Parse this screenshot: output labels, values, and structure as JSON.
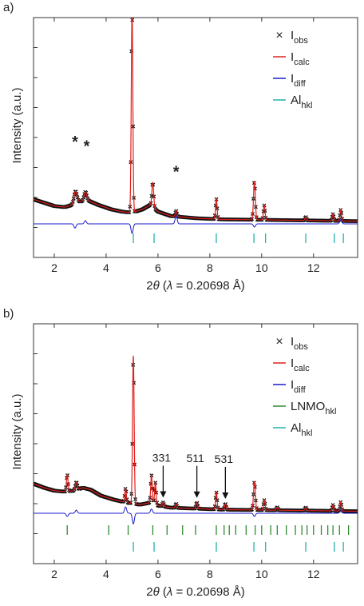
{
  "chart_data": [
    {
      "panel_label": "a)",
      "type": "line",
      "xlabel_prefix": "2",
      "xlabel_theta": "θ",
      "xlabel_mid": " (",
      "xlabel_lambda": "λ",
      "xlabel_suffix": " = 0.20698 Å)",
      "ylabel": "Intensity (a.u.)",
      "xlim": [
        1.2,
        13.7
      ],
      "xticks": [
        "2",
        "4",
        "6",
        "8",
        "10",
        "12"
      ],
      "xtick_values": [
        2,
        4,
        6,
        8,
        10,
        12
      ],
      "ylim": [
        0,
        1
      ],
      "legend": [
        {
          "symbol": "×",
          "main": "I",
          "sub": "obs",
          "color": "#222222",
          "kind": "marker"
        },
        {
          "symbol": "—",
          "main": "I",
          "sub": "calc",
          "color": "#e0201c",
          "kind": "line"
        },
        {
          "symbol": "—",
          "main": "I",
          "sub": "diff",
          "color": "#1a1acc",
          "kind": "line"
        },
        {
          "symbol": "|",
          "main": "Al",
          "sub": "hkl",
          "color": "#20b2aa",
          "kind": "tick"
        }
      ],
      "annotations": [
        {
          "text": "*",
          "x": 2.8,
          "y": 0.345
        },
        {
          "text": "*",
          "x": 3.25,
          "y": 0.325
        },
        {
          "text": "*",
          "x": 6.7,
          "y": 0.21
        }
      ],
      "series": [
        {
          "name": "I",
          "background": [
            [
              1.2,
              0.27
            ],
            [
              1.6,
              0.255
            ],
            [
              2.0,
              0.24
            ],
            [
              2.4,
              0.235
            ],
            [
              2.7,
              0.245
            ],
            [
              3.0,
              0.26
            ],
            [
              3.3,
              0.265
            ],
            [
              3.7,
              0.245
            ],
            [
              4.2,
              0.225
            ],
            [
              4.6,
              0.215
            ],
            [
              5.0,
              0.21
            ],
            [
              5.4,
              0.225
            ],
            [
              5.7,
              0.245
            ],
            [
              6.0,
              0.215
            ],
            [
              6.5,
              0.195
            ],
            [
              7.5,
              0.185
            ],
            [
              8.5,
              0.18
            ],
            [
              10,
              0.178
            ],
            [
              12,
              0.175
            ],
            [
              13.7,
              0.172
            ]
          ],
          "peaks": [
            [
              2.82,
              0.055,
              0.06
            ],
            [
              3.2,
              0.04,
              0.05
            ],
            [
              5.0,
              0.91,
              0.03
            ],
            [
              5.8,
              0.11,
              0.035
            ],
            [
              6.7,
              0.025,
              0.03
            ],
            [
              8.25,
              0.09,
              0.03
            ],
            [
              9.72,
              0.17,
              0.035
            ],
            [
              10.1,
              0.065,
              0.03
            ],
            [
              11.7,
              0.015,
              0.03
            ],
            [
              12.75,
              0.03,
              0.03
            ],
            [
              13.05,
              0.05,
              0.03
            ]
          ]
        }
      ],
      "diff_baseline": 0.095,
      "diff_features": [
        [
          2.8,
          -0.008
        ],
        [
          3.2,
          0.006
        ],
        [
          5.0,
          -0.018
        ],
        [
          6.7,
          0.015
        ],
        [
          9.72,
          -0.006
        ],
        [
          13.05,
          0.008
        ]
      ],
      "hkl_sets": [
        {
          "name": "Al",
          "color": "#20b2aa",
          "positions": [
            5.05,
            5.85,
            8.25,
            9.7,
            10.15,
            11.7,
            12.8,
            13.15
          ],
          "row": 0
        }
      ]
    },
    {
      "panel_label": "b)",
      "type": "line",
      "xlabel_prefix": "2",
      "xlabel_theta": "θ",
      "xlabel_mid": " (",
      "xlabel_lambda": "λ",
      "xlabel_suffix": " = 0.20698 Å)",
      "ylabel": "Intensity (a.u.)",
      "xlim": [
        1.2,
        13.7
      ],
      "xticks": [
        "2",
        "4",
        "6",
        "8",
        "10",
        "12"
      ],
      "xtick_values": [
        2,
        4,
        6,
        8,
        10,
        12
      ],
      "ylim": [
        0,
        1
      ],
      "legend": [
        {
          "symbol": "×",
          "main": "I",
          "sub": "obs",
          "color": "#222222",
          "kind": "marker"
        },
        {
          "symbol": "—",
          "main": "I",
          "sub": "calc",
          "color": "#e0201c",
          "kind": "line"
        },
        {
          "symbol": "—",
          "main": "I",
          "sub": "diff",
          "color": "#1a1acc",
          "kind": "line"
        },
        {
          "symbol": "—",
          "main": "LNMO",
          "sub": "hkl",
          "color": "#2e8b2e",
          "kind": "line"
        },
        {
          "symbol": "—",
          "main": "Al",
          "sub": "hkl",
          "color": "#20b2aa",
          "kind": "line"
        }
      ],
      "arrows": [
        {
          "text": "331",
          "x": 6.2
        },
        {
          "text": "511",
          "x": 7.5
        },
        {
          "text": "531",
          "x": 8.6
        }
      ],
      "series": [
        {
          "name": "I",
          "background": [
            [
              1.2,
              0.32
            ],
            [
              1.6,
              0.3
            ],
            [
              2.0,
              0.285
            ],
            [
              2.4,
              0.28
            ],
            [
              2.8,
              0.285
            ],
            [
              3.1,
              0.3
            ],
            [
              3.4,
              0.29
            ],
            [
              3.8,
              0.26
            ],
            [
              4.3,
              0.24
            ],
            [
              4.8,
              0.225
            ],
            [
              5.3,
              0.215
            ],
            [
              5.7,
              0.225
            ],
            [
              6.0,
              0.21
            ],
            [
              6.5,
              0.2
            ],
            [
              7.5,
              0.195
            ],
            [
              8.5,
              0.19
            ],
            [
              10,
              0.188
            ],
            [
              12,
              0.185
            ],
            [
              13.7,
              0.182
            ]
          ],
          "peaks": [
            [
              2.5,
              0.085,
              0.03
            ],
            [
              2.85,
              0.04,
              0.04
            ],
            [
              4.75,
              0.07,
              0.03
            ],
            [
              5.05,
              0.74,
              0.03
            ],
            [
              5.75,
              0.14,
              0.03
            ],
            [
              5.9,
              0.11,
              0.03
            ],
            [
              6.2,
              0.02,
              0.03
            ],
            [
              6.7,
              0.02,
              0.03
            ],
            [
              7.5,
              0.03,
              0.03
            ],
            [
              8.25,
              0.085,
              0.03
            ],
            [
              8.6,
              0.03,
              0.03
            ],
            [
              9.72,
              0.14,
              0.035
            ],
            [
              10.1,
              0.05,
              0.03
            ],
            [
              10.6,
              0.015,
              0.03
            ],
            [
              11.7,
              0.015,
              0.03
            ],
            [
              12.75,
              0.03,
              0.03
            ],
            [
              13.05,
              0.045,
              0.03
            ]
          ]
        }
      ],
      "diff_baseline": 0.13,
      "diff_features": [
        [
          2.5,
          -0.006
        ],
        [
          2.85,
          0.006
        ],
        [
          4.75,
          0.012
        ],
        [
          5.05,
          -0.02
        ],
        [
          5.75,
          0.008
        ],
        [
          9.72,
          -0.006
        ],
        [
          13.05,
          0.006
        ]
      ],
      "hkl_sets": [
        {
          "name": "LNMO",
          "color": "#2e8b2e",
          "positions": [
            2.5,
            4.1,
            4.85,
            5.8,
            6.35,
            6.95,
            7.45,
            8.25,
            8.55,
            8.75,
            9.0,
            9.4,
            9.75,
            10.0,
            10.35,
            10.6,
            10.95,
            11.3,
            11.55,
            11.75,
            12.0,
            12.3,
            12.55,
            12.75,
            13.0,
            13.35
          ],
          "row": 0
        },
        {
          "name": "Al",
          "color": "#20b2aa",
          "positions": [
            5.05,
            5.85,
            8.25,
            9.7,
            10.15,
            11.7,
            12.8,
            13.15
          ],
          "row": 1
        }
      ]
    }
  ]
}
